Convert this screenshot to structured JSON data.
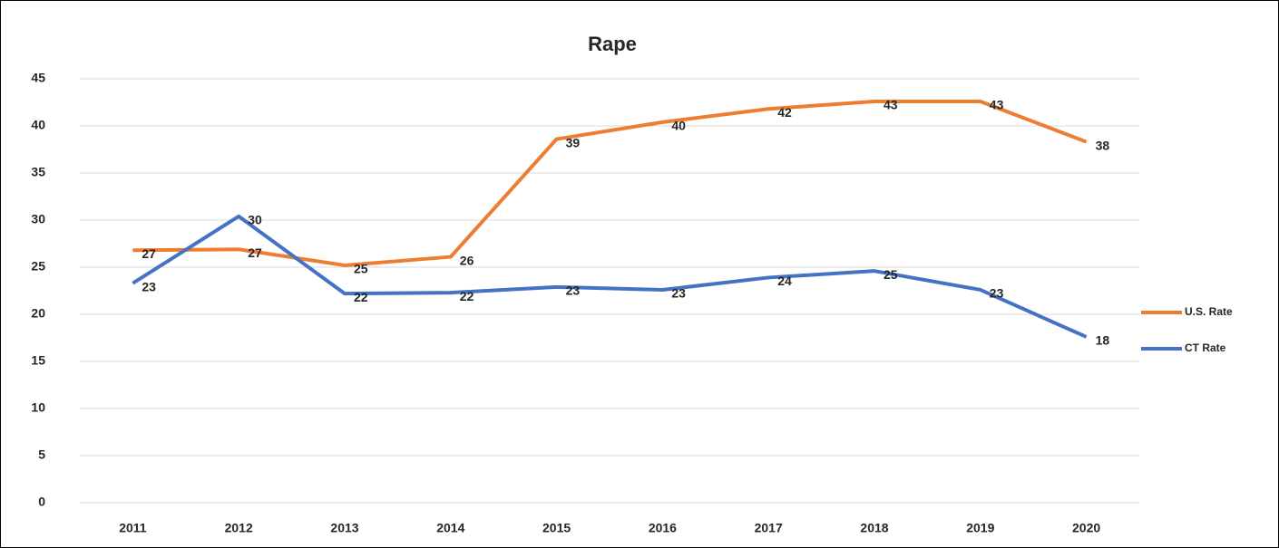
{
  "chart_data": {
    "type": "line",
    "title": "Rape",
    "categories": [
      "2011",
      "2012",
      "2013",
      "2014",
      "2015",
      "2016",
      "2017",
      "2018",
      "2019",
      "2020"
    ],
    "series": [
      {
        "name": "U.S. Rate",
        "color": "#ed7d31",
        "values": [
          26.8,
          26.9,
          25.2,
          26.1,
          38.6,
          40.4,
          41.8,
          42.6,
          42.6,
          38.3
        ],
        "value_labels": [
          "27",
          "27",
          "25",
          "26",
          "39",
          "40",
          "42",
          "43",
          "43",
          "38"
        ]
      },
      {
        "name": "CT Rate",
        "color": "#4472c4",
        "values": [
          23.3,
          30.4,
          22.2,
          22.3,
          22.9,
          22.6,
          23.9,
          24.6,
          22.6,
          17.6
        ],
        "value_labels": [
          "23",
          "30",
          "22",
          "22",
          "23",
          "23",
          "24",
          "25",
          "23",
          "18"
        ]
      }
    ],
    "ylim": [
      0,
      45
    ],
    "yticks": [
      0,
      5,
      10,
      15,
      20,
      25,
      30,
      35,
      40,
      45
    ],
    "grid": true,
    "legend": "right"
  }
}
